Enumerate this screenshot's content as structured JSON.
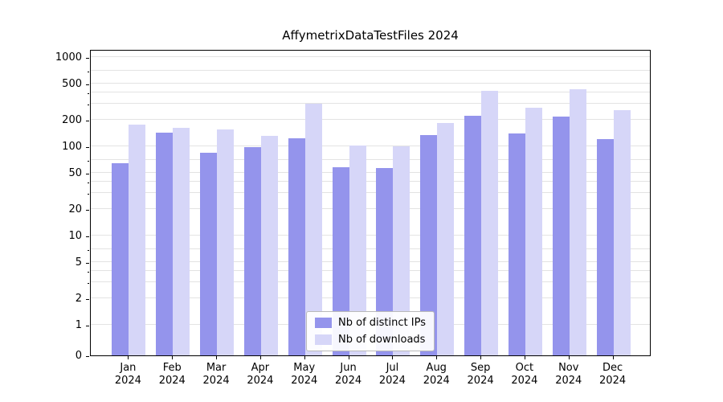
{
  "title": "AffymetrixDataTestFiles 2024",
  "chart_data": {
    "type": "bar",
    "title": "AffymetrixDataTestFiles 2024",
    "categories": [
      "Jan 2024",
      "Feb 2024",
      "Mar 2024",
      "Apr 2024",
      "May 2024",
      "Jun 2024",
      "Jul 2024",
      "Aug 2024",
      "Sep 2024",
      "Oct 2024",
      "Nov 2024",
      "Dec 2024"
    ],
    "x_tick_months": [
      "Jan",
      "Feb",
      "Mar",
      "Apr",
      "May",
      "Jun",
      "Jul",
      "Aug",
      "Sep",
      "Oct",
      "Nov",
      "Dec"
    ],
    "x_tick_year": "2024",
    "series": [
      {
        "name": "Nb of distinct IPs",
        "color": "#9494ec",
        "values": [
          65,
          143,
          85,
          97,
          122,
          58,
          57,
          135,
          222,
          140,
          215,
          120
        ]
      },
      {
        "name": "Nb of downloads",
        "color": "#d6d6f8",
        "values": [
          175,
          162,
          155,
          132,
          300,
          103,
          100,
          183,
          415,
          268,
          435,
          255
        ]
      }
    ],
    "yscale": "symlog",
    "ylim": [
      0,
      1200
    ],
    "y_ticks": [
      0,
      1,
      2,
      5,
      10,
      20,
      50,
      100,
      200,
      500,
      1000
    ],
    "y_minor_gridlines": [
      3,
      4,
      7,
      30,
      40,
      70,
      300,
      400,
      700
    ],
    "grid": true,
    "legend_position": "lower center"
  },
  "colors": {
    "grid": "#e3e3e3",
    "spine": "#000000",
    "background": "#ffffff"
  }
}
